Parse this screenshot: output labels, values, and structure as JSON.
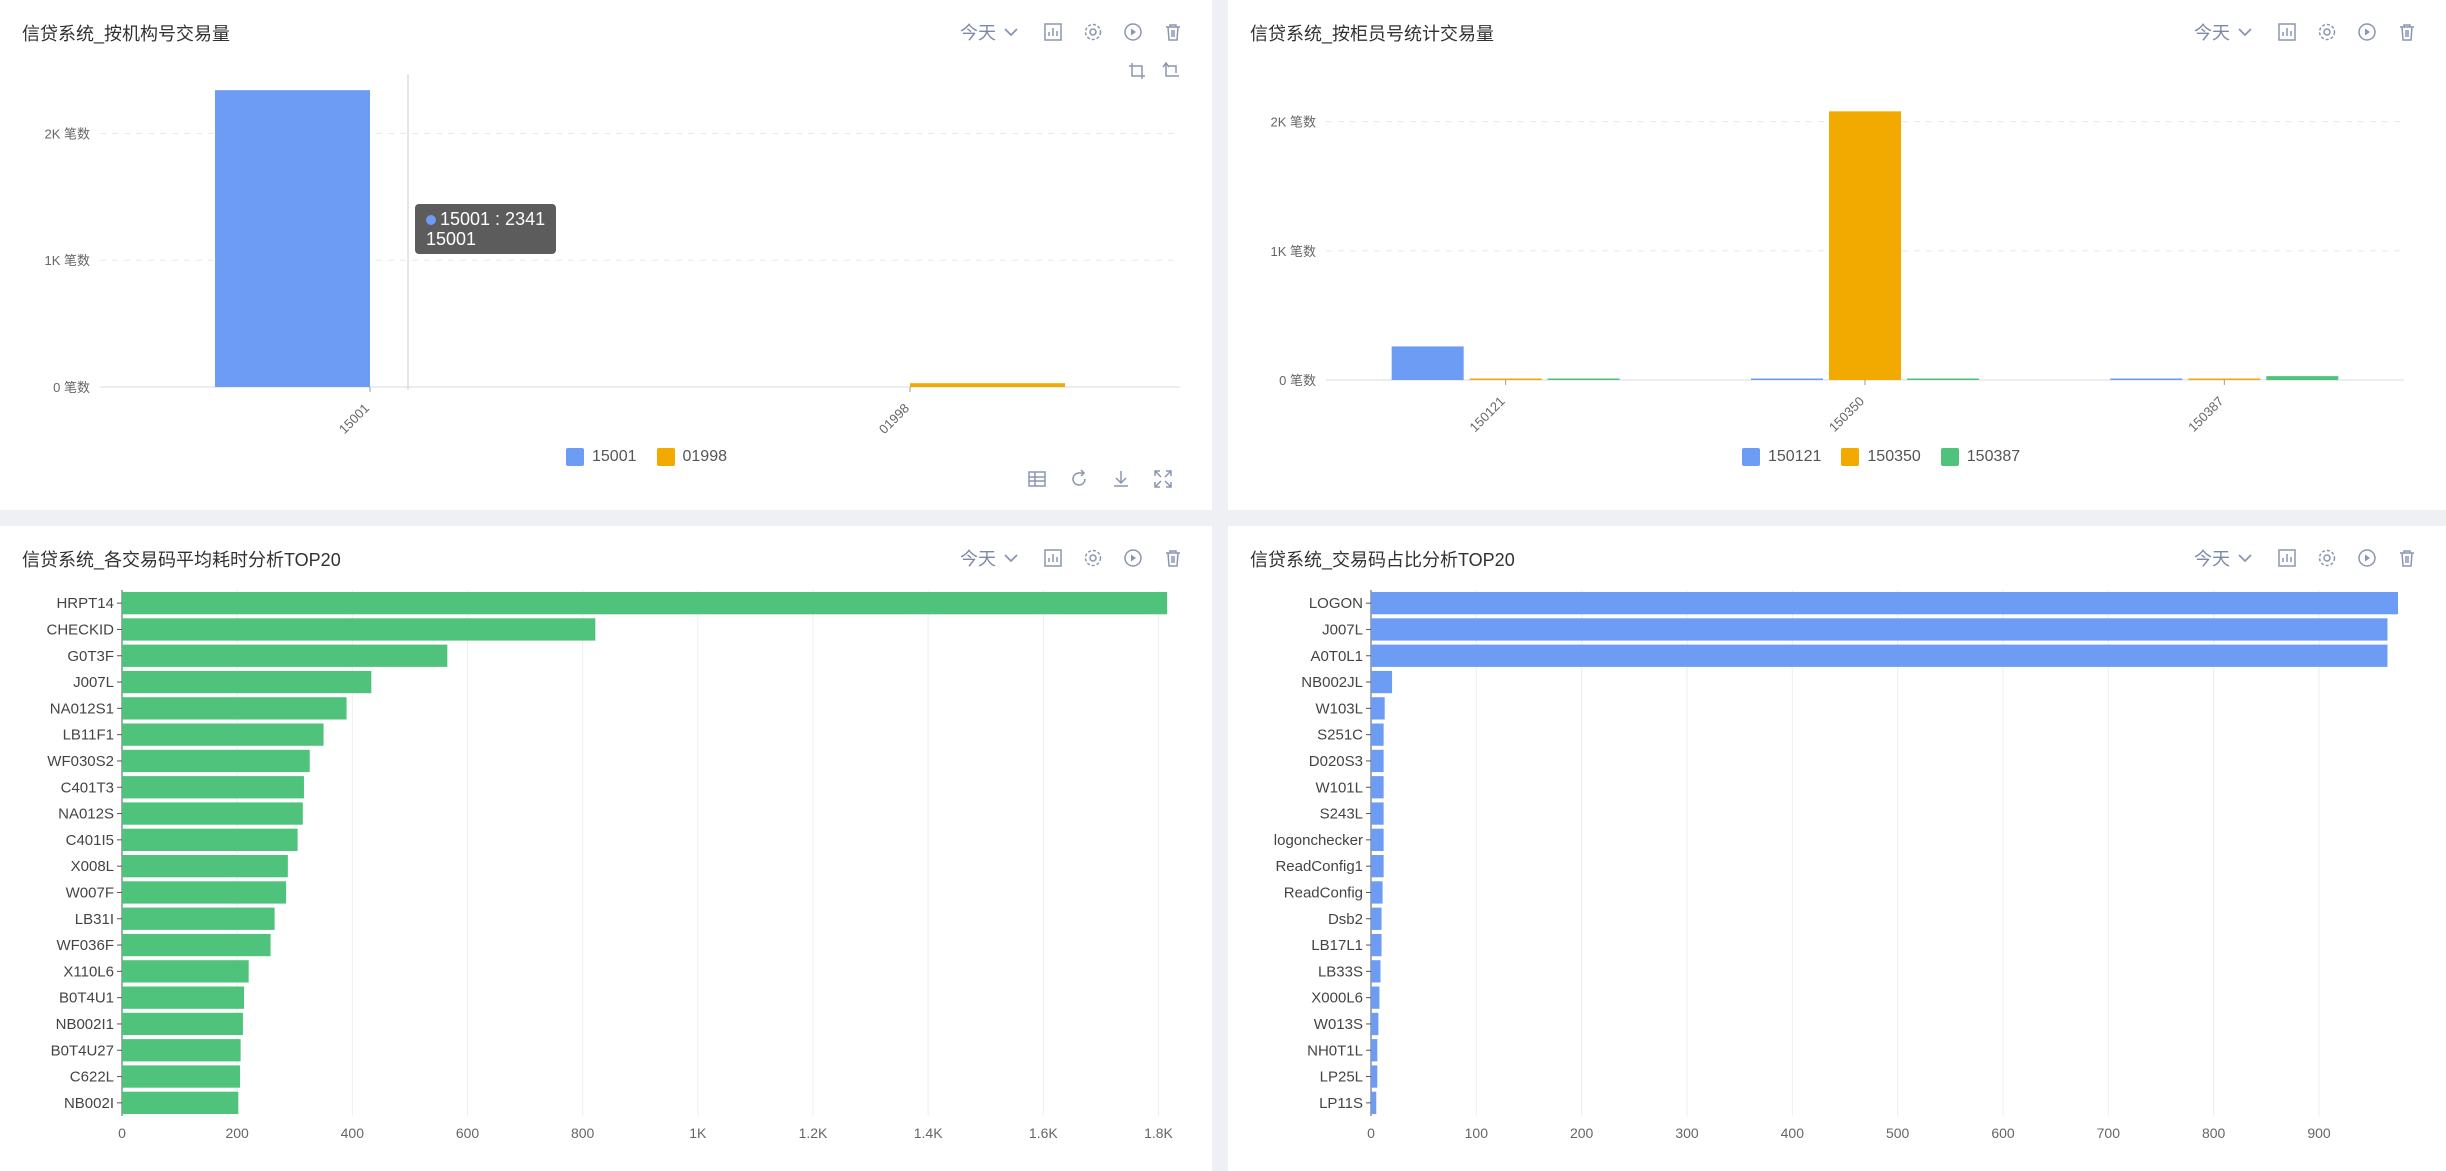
{
  "toolbar": {
    "period_label": "今天"
  },
  "colors": {
    "blue": "#6d9cf4",
    "orange": "#f2a900",
    "green": "#4fc27b",
    "icon": "#8a96b0"
  },
  "panels": [
    {
      "title": "信贷系统_按机构号交易量"
    },
    {
      "title": "信贷系统_按柜员号统计交易量"
    },
    {
      "title": "信贷系统_各交易码平均耗时分析TOP20"
    },
    {
      "title": "信贷系统_交易码占比分析TOP20"
    }
  ],
  "tooltip": {
    "line1": "15001 : 2341",
    "line2": "15001"
  },
  "chart_data": [
    {
      "type": "bar",
      "categories": [
        "15001",
        "01998"
      ],
      "series": [
        {
          "name": "15001",
          "values": [
            2341,
            null
          ]
        },
        {
          "name": "01998",
          "values": [
            null,
            30
          ]
        }
      ],
      "yticks": [
        "0 笔数",
        "1K 笔数",
        "2K 笔数"
      ],
      "ylim": [
        0,
        2500
      ],
      "legend": [
        {
          "name": "15001"
        },
        {
          "name": "01998"
        }
      ]
    },
    {
      "type": "bar",
      "categories": [
        "150121",
        "150350",
        "150387"
      ],
      "series": [
        {
          "name": "150121",
          "values": [
            260,
            3,
            3
          ]
        },
        {
          "name": "150350",
          "values": [
            3,
            2080,
            3
          ]
        },
        {
          "name": "150387",
          "values": [
            3,
            3,
            30
          ]
        }
      ],
      "yticks": [
        "0 笔数",
        "1K 笔数",
        "2K 笔数"
      ],
      "ylim": [
        0,
        2400
      ],
      "legend": [
        {
          "name": "150121"
        },
        {
          "name": "150350"
        },
        {
          "name": "150387"
        }
      ]
    },
    {
      "type": "bar",
      "orientation": "horizontal",
      "categories": [
        "HRPT14",
        "CHECKID",
        "G0T3F",
        "J007L",
        "NA012S1",
        "LB11F1",
        "WF030S2",
        "C401T3",
        "NA012S",
        "C401I5",
        "X008L",
        "W007F",
        "LB31I",
        "WF036F",
        "X110L6",
        "B0T4U1",
        "NB002I1",
        "B0T4U27",
        "C622L",
        "NB002I"
      ],
      "values": [
        1815,
        822,
        565,
        433,
        390,
        350,
        326,
        316,
        314,
        305,
        288,
        285,
        265,
        258,
        220,
        212,
        210,
        206,
        205,
        202
      ],
      "xticks": [
        "0",
        "200",
        "400",
        "600",
        "800",
        "1K",
        "1.2K",
        "1.4K",
        "1.6K",
        "1.8K"
      ],
      "xlim": [
        0,
        1820
      ]
    },
    {
      "type": "bar",
      "orientation": "horizontal",
      "categories": [
        "LOGON",
        "J007L",
        "A0T0L1",
        "NB002JL",
        "W103L",
        "S251C",
        "D020S3",
        "W101L",
        "S243L",
        "logonchecker",
        "ReadConfig1",
        "ReadConfig",
        "Dsb2",
        "LB17L1",
        "LB33S",
        "X000L6",
        "W013S",
        "NH0T1L",
        "LP25L",
        "LP11S"
      ],
      "values": [
        975,
        965,
        965,
        20,
        13,
        12,
        12,
        12,
        12,
        12,
        12,
        11,
        10,
        10,
        9,
        8,
        7,
        6,
        6,
        5
      ],
      "xticks": [
        "0",
        "100",
        "200",
        "300",
        "400",
        "500",
        "600",
        "700",
        "800",
        "900"
      ],
      "xlim": [
        0,
        975
      ]
    }
  ]
}
